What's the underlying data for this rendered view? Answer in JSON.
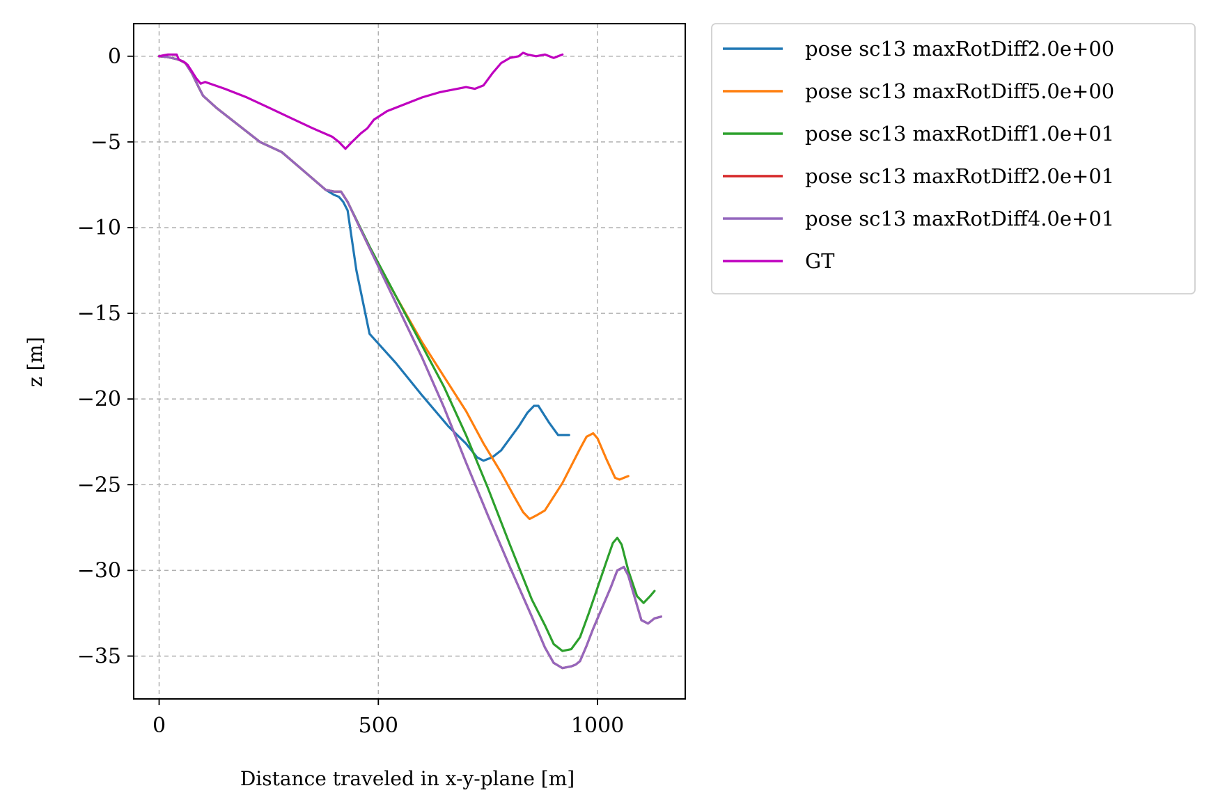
{
  "chart_data": {
    "type": "line",
    "title": "",
    "xlabel": "Distance traveled in x-y-plane [m]",
    "ylabel": "z [m]",
    "xlim": [
      -58,
      1200
    ],
    "ylim": [
      -37.5,
      1.9
    ],
    "xticks": [
      0,
      500,
      1000
    ],
    "yticks": [
      0,
      -5,
      -10,
      -15,
      -20,
      -25,
      -30,
      -35
    ],
    "xtick_labels": [
      "0",
      "500",
      "1000"
    ],
    "ytick_labels": [
      "0",
      "−5",
      "−10",
      "−15",
      "−20",
      "−25",
      "−30",
      "−35"
    ],
    "grid": true,
    "legend_position": "outside-top-right",
    "series": [
      {
        "name": "pose sc13 maxRotDiff2.0e+00",
        "color": "#1f77b4",
        "x": [
          0,
          20,
          45,
          60,
          75,
          90,
          100,
          130,
          180,
          230,
          280,
          330,
          380,
          400,
          410,
          420,
          430,
          450,
          480,
          540,
          600,
          660,
          700,
          725,
          740,
          760,
          780,
          800,
          820,
          840,
          855,
          865,
          875,
          890,
          910,
          935
        ],
        "y": [
          0,
          -0.05,
          -0.2,
          -0.4,
          -1.0,
          -1.8,
          -2.3,
          -3.0,
          -4.0,
          -5.0,
          -5.6,
          -6.7,
          -7.8,
          -8.1,
          -8.2,
          -8.5,
          -9.0,
          -12.5,
          -16.2,
          -17.9,
          -19.8,
          -21.6,
          -22.6,
          -23.4,
          -23.6,
          -23.4,
          -23.0,
          -22.3,
          -21.6,
          -20.8,
          -20.4,
          -20.4,
          -20.8,
          -21.4,
          -22.1,
          -22.1
        ]
      },
      {
        "name": "pose sc13 maxRotDiff5.0e+00",
        "color": "#ff7f0e",
        "x": [
          0,
          20,
          45,
          60,
          75,
          90,
          100,
          130,
          180,
          230,
          280,
          330,
          380,
          400,
          415,
          430,
          480,
          540,
          600,
          650,
          700,
          740,
          780,
          810,
          830,
          845,
          860,
          880,
          900,
          920,
          940,
          960,
          975,
          990,
          1000,
          1020,
          1040,
          1050,
          1060,
          1070
        ],
        "y": [
          0,
          -0.05,
          -0.2,
          -0.4,
          -1.0,
          -1.8,
          -2.3,
          -3.0,
          -4.0,
          -5.0,
          -5.6,
          -6.7,
          -7.8,
          -7.9,
          -7.9,
          -8.5,
          -11.2,
          -14.0,
          -16.7,
          -18.7,
          -20.7,
          -22.6,
          -24.3,
          -25.7,
          -26.6,
          -27.0,
          -26.8,
          -26.5,
          -25.7,
          -24.9,
          -23.9,
          -22.9,
          -22.2,
          -22.0,
          -22.3,
          -23.5,
          -24.6,
          -24.7,
          -24.6,
          -24.5
        ]
      },
      {
        "name": "pose sc13 maxRotDiff1.0e+01",
        "color": "#2ca02c",
        "x": [
          0,
          20,
          45,
          60,
          75,
          90,
          100,
          130,
          180,
          230,
          280,
          330,
          380,
          400,
          415,
          430,
          480,
          540,
          600,
          650,
          700,
          750,
          800,
          850,
          880,
          900,
          920,
          940,
          960,
          980,
          1000,
          1020,
          1035,
          1045,
          1055,
          1070,
          1090,
          1105,
          1120,
          1130
        ],
        "y": [
          0,
          -0.05,
          -0.2,
          -0.4,
          -1.0,
          -1.8,
          -2.3,
          -3.0,
          -4.0,
          -5.0,
          -5.6,
          -6.7,
          -7.8,
          -7.9,
          -7.9,
          -8.5,
          -11.1,
          -14.0,
          -16.9,
          -19.3,
          -22.1,
          -25.2,
          -28.5,
          -31.7,
          -33.2,
          -34.3,
          -34.7,
          -34.6,
          -33.9,
          -32.5,
          -31.0,
          -29.5,
          -28.4,
          -28.1,
          -28.5,
          -30.0,
          -31.5,
          -31.9,
          -31.5,
          -31.2
        ]
      },
      {
        "name": "pose sc13 maxRotDiff2.0e+01",
        "color": "#d62728",
        "x": [
          0,
          20,
          45,
          60,
          75,
          90,
          100,
          130,
          180,
          230,
          280,
          330,
          380,
          400,
          415,
          430,
          480,
          540,
          600,
          650,
          700,
          750,
          800,
          850,
          880,
          900,
          920,
          940,
          950,
          960,
          975,
          990,
          1010,
          1030,
          1045,
          1060,
          1070,
          1085,
          1100,
          1115,
          1130,
          1145
        ],
        "y": [
          0,
          -0.05,
          -0.2,
          -0.4,
          -1.0,
          -1.8,
          -2.3,
          -3.0,
          -4.0,
          -5.0,
          -5.6,
          -6.7,
          -7.8,
          -7.9,
          -7.9,
          -8.5,
          -11.2,
          -14.4,
          -17.6,
          -20.5,
          -23.7,
          -26.8,
          -29.8,
          -32.7,
          -34.5,
          -35.4,
          -35.7,
          -35.6,
          -35.5,
          -35.3,
          -34.4,
          -33.4,
          -32.2,
          -31.0,
          -30.0,
          -29.8,
          -30.3,
          -31.6,
          -32.9,
          -33.1,
          -32.8,
          -32.7
        ]
      },
      {
        "name": "pose sc13 maxRotDiff4.0e+01",
        "color": "#9467bd",
        "x": [
          0,
          20,
          45,
          60,
          75,
          90,
          100,
          130,
          180,
          230,
          280,
          330,
          380,
          400,
          415,
          430,
          480,
          540,
          600,
          650,
          700,
          750,
          800,
          850,
          880,
          900,
          920,
          940,
          950,
          960,
          975,
          990,
          1010,
          1030,
          1045,
          1060,
          1070,
          1085,
          1100,
          1115,
          1130,
          1145
        ],
        "y": [
          0,
          -0.05,
          -0.2,
          -0.4,
          -1.0,
          -1.8,
          -2.3,
          -3.0,
          -4.0,
          -5.0,
          -5.6,
          -6.7,
          -7.8,
          -7.9,
          -7.9,
          -8.5,
          -11.2,
          -14.4,
          -17.6,
          -20.5,
          -23.7,
          -26.8,
          -29.8,
          -32.7,
          -34.5,
          -35.4,
          -35.7,
          -35.6,
          -35.5,
          -35.3,
          -34.4,
          -33.4,
          -32.2,
          -31.0,
          -30.0,
          -29.8,
          -30.3,
          -31.6,
          -32.9,
          -33.1,
          -32.8,
          -32.7
        ]
      },
      {
        "name": "GT",
        "color": "#bf00bf",
        "x": [
          0,
          10,
          20,
          30,
          40,
          45,
          55,
          65,
          75,
          85,
          95,
          105,
          150,
          200,
          250,
          300,
          350,
          395,
          410,
          425,
          440,
          460,
          475,
          490,
          520,
          560,
          600,
          640,
          680,
          700,
          720,
          740,
          760,
          780,
          800,
          820,
          830,
          840,
          860,
          880,
          900,
          910,
          920
        ],
        "y": [
          0,
          0.05,
          0.1,
          0.1,
          0.1,
          -0.2,
          -0.3,
          -0.5,
          -0.9,
          -1.3,
          -1.6,
          -1.5,
          -1.9,
          -2.4,
          -3.0,
          -3.6,
          -4.2,
          -4.7,
          -5.0,
          -5.4,
          -5.0,
          -4.5,
          -4.2,
          -3.7,
          -3.2,
          -2.8,
          -2.4,
          -2.1,
          -1.9,
          -1.8,
          -1.9,
          -1.7,
          -1.0,
          -0.4,
          -0.1,
          0.0,
          0.2,
          0.1,
          0.0,
          0.1,
          -0.1,
          0.0,
          0.1
        ]
      }
    ]
  }
}
